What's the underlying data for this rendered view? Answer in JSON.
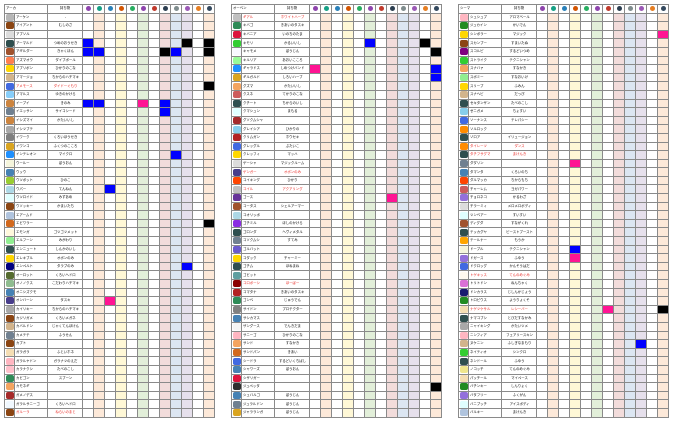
{
  "title": "",
  "column_colors": [
    "#ffffff",
    "#fde9d9",
    "#ffffff",
    "#fff8d6",
    "#ffffff",
    "#e2efd9",
    "#ffffff",
    "#f2dcdb",
    "#dce6f2",
    "#e6e0ec",
    "#ffffff",
    "#fde9d9"
  ],
  "header_icon_colors": [
    "#8e44ad",
    "#16a085",
    "#2980b9",
    "#d35400",
    "#27ae60",
    "#8e44ad",
    "#c0392b",
    "#2c3e50",
    "#7f8c8d",
    "#9b59b6",
    "#e67e22",
    "#34495e"
  ],
  "panels": [
    {
      "header_name": "アーカ",
      "header_item": "持ち物",
      "rows": [
        {
          "name": "アーケン",
          "item": "-",
          "icon": "#b7b7b7"
        },
        {
          "name": "アイアント",
          "item": "むしのさ",
          "icon": "#8b4513"
        },
        {
          "name": "アブソル",
          "item": "",
          "icon": "#dcdcdc"
        },
        {
          "name": "アーマルド",
          "item": "つめのおうせき",
          "icon": "#2f4f4f",
          "cells": {
            "0": "blue",
            "9": "black",
            "11": "black"
          }
        },
        {
          "name": "アギルダー",
          "item": "きゃくほん",
          "icon": "#a0522d",
          "cells": {
            "0": "blue",
            "1": "blue",
            "7": "black",
            "8": "blue",
            "11": "black"
          }
        },
        {
          "name": "アズマオウ",
          "item": "ダイブボール",
          "icon": "#ff7f50"
        },
        {
          "name": "アブリボン",
          "item": "ひかりのこな",
          "icon": "#ffd700"
        },
        {
          "name": "アマージョ",
          "item": "ちからのハチマキ",
          "icon": "#d2b48c"
        },
        {
          "name": "アメモース",
          "item": "ダイドーぐもり",
          "icon": "#4169e1",
          "red": true,
          "cells": {
            "11": "black"
          }
        },
        {
          "name": "アマルス",
          "item": "ゆきのかけら",
          "icon": "#87cefa"
        },
        {
          "name": "イーブイ",
          "item": "きのみ",
          "icon": "#cd853f",
          "cells": {
            "0": "blue",
            "1": "blue",
            "5": "pink",
            "7": "blue"
          }
        },
        {
          "name": "イエッサン",
          "item": "サイコシード",
          "icon": "#708090",
          "cells": {
            "7": "blue"
          }
        },
        {
          "name": "イシズマイ",
          "item": "かたいいし",
          "icon": "#cd853f"
        },
        {
          "name": "イシツブテ",
          "item": "",
          "icon": "#a9a9a9"
        },
        {
          "name": "イワーク",
          "item": "くろいほうせき",
          "icon": "#808080"
        },
        {
          "name": "イワンコ",
          "item": "ふくつのこころ",
          "icon": "#daa520"
        },
        {
          "name": "インテレオン",
          "item": "マイクロ",
          "icon": "#1e90ff",
          "cells": {
            "8": "blue"
          }
        },
        {
          "name": "ウールー",
          "item": "ぼうおん",
          "icon": "#f5f5dc"
        },
        {
          "name": "ウッウ",
          "item": "",
          "icon": "#4682b4"
        },
        {
          "name": "ウツボット",
          "item": "ひのこ",
          "icon": "#9acd32"
        },
        {
          "name": "ウパー",
          "item": "てんねん",
          "icon": "#add8e6",
          "cells": {
            "2": "blue"
          }
        },
        {
          "name": "ウツロイド",
          "item": "みずあめ",
          "icon": "#e0ffff"
        },
        {
          "name": "ウソッキー",
          "item": "かまいたち",
          "icon": "#8b4513"
        },
        {
          "name": "エアームド",
          "item": "",
          "icon": "#b0c4de"
        },
        {
          "name": "エビワラー",
          "item": "",
          "icon": "#d2691e",
          "cells": {
            "11": "black"
          }
        },
        {
          "name": "エモンガ",
          "item": "ゴツゴツメット",
          "icon": "#fff8dc"
        },
        {
          "name": "エルフーン",
          "item": "みがわり",
          "icon": "#90ee90"
        },
        {
          "name": "エンニュート",
          "item": "しんかのいし",
          "icon": "#2f4f4f"
        },
        {
          "name": "エレキブル",
          "item": "オボンのみ",
          "icon": "#ffd700"
        },
        {
          "name": "エンペルト",
          "item": "タラプのみ",
          "icon": "#000080",
          "cells": {
            "9": "blue"
          }
        },
        {
          "name": "オーロット",
          "item": "くろいヘドロ",
          "icon": "#556b2f"
        },
        {
          "name": "オノノクス",
          "item": "こだわりハチマキ",
          "icon": "#8fbc8f"
        },
        {
          "name": "オニシズクモ",
          "item": "",
          "icon": "#4682b4"
        },
        {
          "name": "オンバーン",
          "item": "タスキ",
          "icon": "#483d8b",
          "cells": {
            "2": "pink"
          }
        },
        {
          "name": "カイリキー",
          "item": "ちからのハチマキ",
          "icon": "#a9a9a9"
        },
        {
          "name": "カジリガメ",
          "item": "くろいメガネ",
          "icon": "#8b4513"
        },
        {
          "name": "カバルドン",
          "item": "じゃくてんほけん",
          "icon": "#d2b48c"
        },
        {
          "name": "カメテテ",
          "item": "ふうせん",
          "icon": "#708090"
        },
        {
          "name": "カブト",
          "item": "",
          "icon": "#8b4513"
        },
        {
          "name": "ガラガラ",
          "item": "ふといホネ",
          "icon": "#f5deb3"
        },
        {
          "name": "ガラルヤドン",
          "item": "ガラナツのえだ",
          "icon": "#ffb6c1"
        },
        {
          "name": "カラナクシ",
          "item": "たべのこし",
          "icon": "#ffc0cb"
        },
        {
          "name": "カビゴン",
          "item": "スプーン",
          "icon": "#2e8b57"
        },
        {
          "name": "カモネギ",
          "item": "",
          "icon": "#f4a460"
        },
        {
          "name": "ガメノデス",
          "item": "",
          "icon": "#a52a2a"
        },
        {
          "name": "ガラルサニーゴ",
          "item": "くろいヘドロ",
          "icon": "#f0f8ff"
        },
        {
          "name": "ガルーラ",
          "item": "ねらいのまと",
          "icon": "#8b4513",
          "red": true
        }
      ]
    },
    {
      "header_name": "オーベン",
      "header_item": "持ち物",
      "rows": [
        {
          "name": "ギアル",
          "item": "ホワイトハーブ",
          "icon": "#c0c0c0",
          "red": true
        },
        {
          "name": "キバゴ",
          "item": "きあいのタスキ",
          "icon": "#2e8b57"
        },
        {
          "name": "キバニア",
          "item": "いのちのたま",
          "icon": "#dc143c"
        },
        {
          "name": "キモリ",
          "item": "かるいいし",
          "icon": "#32cd32",
          "cells": {
            "5": "blue",
            "10": "black"
          }
        },
        {
          "name": "キャモメ",
          "item": "ぼうじん",
          "icon": "#f8f8ff",
          "cells": {
            "11": "black"
          }
        },
        {
          "name": "キルリア",
          "item": "あおいこころ",
          "icon": "#98fb98"
        },
        {
          "name": "ギャラドス",
          "item": "しめつけバンド",
          "icon": "#1e90ff",
          "cells": {
            "0": "pink",
            "11": "blue"
          }
        },
        {
          "name": "ギルガルド",
          "item": "しろいハーブ",
          "icon": "#daa520",
          "cells": {
            "11": "blue"
          }
        },
        {
          "name": "グズマ",
          "item": "かたいいし",
          "icon": "#f4a460"
        },
        {
          "name": "クスネ",
          "item": "てかりのこな",
          "icon": "#cd5c5c"
        },
        {
          "name": "クチート",
          "item": "ちからのいし",
          "icon": "#2f4f4f"
        },
        {
          "name": "クマシュン",
          "item": "まもる",
          "icon": "#e0ffff"
        },
        {
          "name": "グソクムシャ",
          "item": "",
          "icon": "#a52a2a"
        },
        {
          "name": "グレイシア",
          "item": "ひかりの",
          "icon": "#87ceeb"
        },
        {
          "name": "クリムガン",
          "item": "ホウセキ",
          "icon": "#b22222"
        },
        {
          "name": "グレッグル",
          "item": "ぶたいこ",
          "icon": "#4169e1"
        },
        {
          "name": "クレッフィ",
          "item": "マッハ",
          "icon": "#ffd700"
        },
        {
          "name": "ゲーシャ",
          "item": "マジックルーム",
          "icon": "#dcdcdc"
        },
        {
          "name": "ゲンガー",
          "item": "オボンのみ",
          "icon": "#483d8b",
          "red": true
        },
        {
          "name": "コイキング",
          "item": "ひかり",
          "icon": "#ff4500"
        },
        {
          "name": "コイル",
          "item": "アクアリング",
          "icon": "#c0c0c0",
          "red": true
        },
        {
          "name": "ゴース",
          "item": "",
          "icon": "#663399",
          "cells": {
            "7": "pink"
          }
        },
        {
          "name": "コータス",
          "item": "シェルアーマー",
          "icon": "#a0522d"
        },
        {
          "name": "コオリッポ",
          "item": "",
          "icon": "#add8e6"
        },
        {
          "name": "ゴチミル",
          "item": "ほしのかけら",
          "icon": "#8a2be2"
        },
        {
          "name": "ゴロンダ",
          "item": "ヘヴィメタル",
          "icon": "#2f4f4f"
        },
        {
          "name": "コソクムシ",
          "item": "すてみ",
          "icon": "#708090"
        },
        {
          "name": "ゴルバット",
          "item": "",
          "icon": "#6a5acd"
        },
        {
          "name": "コダック",
          "item": "チャーミー",
          "icon": "#ffd700"
        },
        {
          "name": "ゴチム",
          "item": "ほねまね",
          "icon": "#2f4f4f"
        },
        {
          "name": "ゴビット",
          "item": "",
          "icon": "#5f9ea0"
        },
        {
          "name": "コロボーシ",
          "item": "ほーぱー",
          "icon": "#8b0000",
          "red": true
        },
        {
          "name": "コマタナ",
          "item": "きあいのタスキ",
          "icon": "#b22222"
        },
        {
          "name": "ゴンベ",
          "item": "じゅうでん",
          "icon": "#2e8b57"
        },
        {
          "name": "サイドン",
          "item": "プロテクター",
          "icon": "#808080"
        },
        {
          "name": "サシカマス",
          "item": "",
          "icon": "#4682b4"
        },
        {
          "name": "ザングース",
          "item": "でんきだま",
          "icon": "#f5f5f5"
        },
        {
          "name": "サニーゴ",
          "item": "ひかりのこな",
          "icon": "#ffb6c1"
        },
        {
          "name": "サンド",
          "item": "すなかき",
          "icon": "#f4a460"
        },
        {
          "name": "サンドパン",
          "item": "きあい",
          "icon": "#d2691e"
        },
        {
          "name": "シードラ",
          "item": "するどいくちばし",
          "icon": "#4169e1"
        },
        {
          "name": "シャワーズ",
          "item": "ぼうおん",
          "icon": "#4682b4"
        },
        {
          "name": "シザリガー",
          "item": "",
          "icon": "#dc143c"
        },
        {
          "name": "ジュペッタ",
          "item": "",
          "icon": "#2f2f2f",
          "cells": {
            "11": "black"
          }
        },
        {
          "name": "シュバルゴ",
          "item": "ぼうじん",
          "icon": "#4682b4"
        },
        {
          "name": "ジュラルドン",
          "item": "ぼうじん",
          "icon": "#708090"
        },
        {
          "name": "ジャラランガ",
          "item": "ぼうじん",
          "icon": "#daa520"
        }
      ]
    },
    {
      "header_name": "シーマ",
      "header_item": "持ち物",
      "rows": [
        {
          "name": "シュシュプ",
          "item": "アロマベール",
          "icon": "#ffb6c1"
        },
        {
          "name": "ジュカイン",
          "item": "かいでん",
          "icon": "#228b22"
        },
        {
          "name": "シンボラー",
          "item": "マジック",
          "icon": "#ffd700",
          "cells": {
            "11": "pink"
          }
        },
        {
          "name": "スカンプー",
          "item": "すまいたぬ",
          "icon": "#8b4513"
        },
        {
          "name": "スコルピ",
          "item": "するどいつめ",
          "icon": "#800080"
        },
        {
          "name": "ストライク",
          "item": "テクニシャン",
          "icon": "#32cd32"
        },
        {
          "name": "スナバァ",
          "item": "すなかき",
          "icon": "#f4a460"
        },
        {
          "name": "スボミー",
          "item": "すなおいけ",
          "icon": "#90ee90"
        },
        {
          "name": "スリープ",
          "item": "ふみん",
          "icon": "#ffd700"
        },
        {
          "name": "スナヘビ",
          "item": "だっぴ",
          "icon": "#d2b48c"
        },
        {
          "name": "セキタンザン",
          "item": "たべのこし",
          "icon": "#2f4f4f"
        },
        {
          "name": "ゼニガメ",
          "item": "ちょすい",
          "icon": "#87ceeb"
        },
        {
          "name": "ソーナンス",
          "item": "テレパシー",
          "icon": "#4169e1"
        },
        {
          "name": "ソルロック",
          "item": "",
          "icon": "#ff8c00"
        },
        {
          "name": "ゾロア",
          "item": "イリュージョン",
          "icon": "#2f4f4f"
        },
        {
          "name": "タイレーツ",
          "item": "ダンス",
          "icon": "#ff8c00",
          "red": true
        },
        {
          "name": "タチフサグマ",
          "item": "まけんき",
          "icon": "#2f4f4f",
          "red": true
        },
        {
          "name": "ダダリン",
          "item": "",
          "icon": "#708090",
          "cells": {
            "3": "pink"
          }
        },
        {
          "name": "タマンタ",
          "item": "くろいのち",
          "icon": "#4682b4"
        },
        {
          "name": "ダルマッカ",
          "item": "ちからもち",
          "icon": "#ff4500"
        },
        {
          "name": "チャーレム",
          "item": "ヨガパワー",
          "icon": "#cd5c5c"
        },
        {
          "name": "チョロネコ",
          "item": "かるわざ",
          "icon": "#9370db"
        },
        {
          "name": "チラーミィ",
          "item": "メロメロボディ",
          "icon": "#dcdcdc"
        },
        {
          "name": "ツンベアー",
          "item": "すいすい",
          "icon": "#e0ffff"
        },
        {
          "name": "ディグダ",
          "item": "すながくれ",
          "icon": "#a0522d"
        },
        {
          "name": "テッカグヤ",
          "item": "ビーストブースト",
          "icon": "#2f4f4f"
        },
        {
          "name": "テールナー",
          "item": "もうか",
          "icon": "#ffa500"
        },
        {
          "name": "ドーブル",
          "item": "テクニシャン",
          "icon": "#f5f5dc",
          "cells": {
            "3": "blue"
          }
        },
        {
          "name": "ドガース",
          "item": "ふゆう",
          "icon": "#9370db",
          "cells": {
            "3": "pink"
          }
        },
        {
          "name": "ドクロッグ",
          "item": "かんそうはだ",
          "icon": "#4169e1"
        },
        {
          "name": "トゲキッス",
          "item": "てんのめぐみ",
          "icon": "#fffaf0",
          "red": true
        },
        {
          "name": "トリトドン",
          "item": "ねんちゃく",
          "icon": "#da70d6"
        },
        {
          "name": "ドンカラス",
          "item": "じしんかじょう",
          "icon": "#191970"
        },
        {
          "name": "トロピウス",
          "item": "ようりょくそ",
          "icon": "#228b22"
        },
        {
          "name": "ナゲツケサル",
          "item": "レシーバー",
          "icon": "#f5deb3",
          "red": true,
          "cells": {
            "6": "pink",
            "11": "black"
          }
        },
        {
          "name": "ナマコブシ",
          "item": "とびだすなかみ",
          "icon": "#2f4f4f"
        },
        {
          "name": "ニャイキング",
          "item": "かたいツメ",
          "icon": "#a9a9a9"
        },
        {
          "name": "ニンフィア",
          "item": "フェアリースキン",
          "icon": "#ffb6c1"
        },
        {
          "name": "ヌケニン",
          "item": "ふしぎなまもり",
          "icon": "#d2b48c",
          "cells": {
            "9": "blue"
          }
        },
        {
          "name": "ネイティオ",
          "item": "シンクロ",
          "icon": "#32cd32"
        },
        {
          "name": "ネンドール",
          "item": "ふゆう",
          "icon": "#2f4f4f"
        },
        {
          "name": "ノコッチ",
          "item": "てんのめぐみ",
          "icon": "#f0e68c"
        },
        {
          "name": "パッチール",
          "item": "マイペース",
          "icon": "#f5deb3"
        },
        {
          "name": "バチンキー",
          "item": "しんりょく",
          "icon": "#228b22"
        },
        {
          "name": "バタフリー",
          "item": "ふくがん",
          "icon": "#9370db"
        },
        {
          "name": "バニプッチ",
          "item": "アイスボディ",
          "icon": "#e0ffff"
        },
        {
          "name": "バルキー",
          "item": "まけんき",
          "icon": "#b0c4de"
        }
      ]
    }
  ]
}
